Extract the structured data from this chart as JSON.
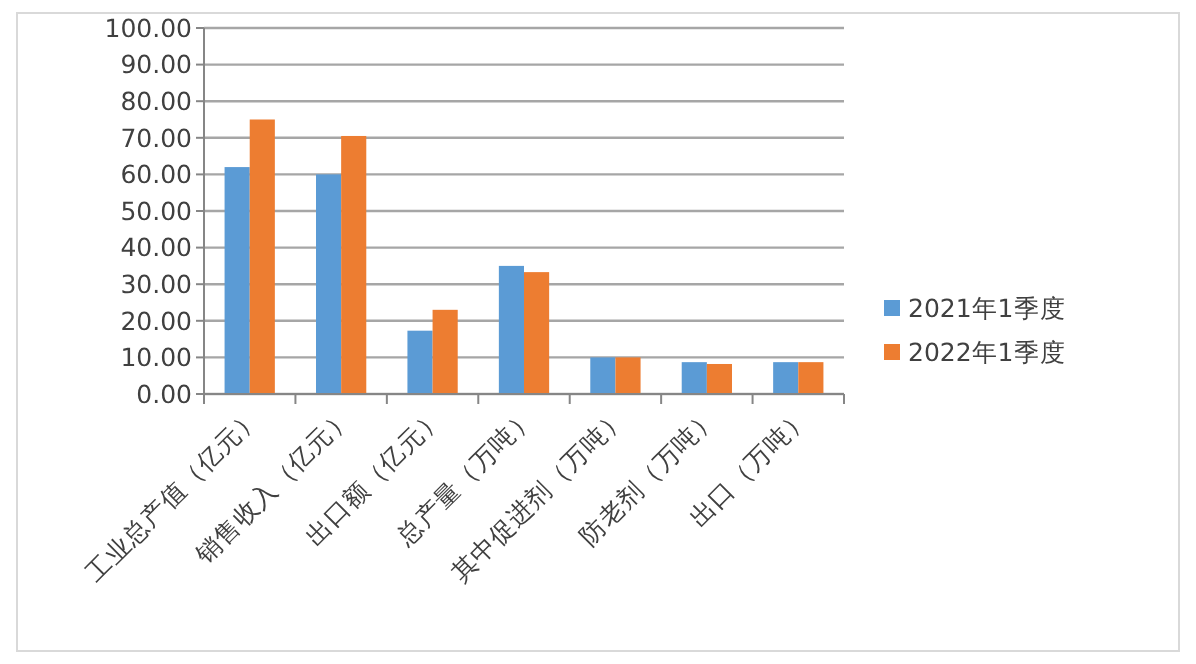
{
  "chart_data": {
    "type": "bar",
    "categories": [
      "工业总产值（亿元）",
      "销售收入（亿元）",
      "出口额（亿元）",
      "总产量（万吨）",
      "其中促进剂（万吨）",
      "防老剂（万吨）",
      "出口（万吨）"
    ],
    "series": [
      {
        "name": "2021年1季度",
        "color": "#5b9bd5",
        "values": [
          62,
          60,
          17.3,
          35,
          10,
          8.7,
          8.7
        ]
      },
      {
        "name": "2022年1季度",
        "color": "#ed7d31",
        "values": [
          75,
          70.5,
          23,
          33.3,
          10,
          8.2,
          8.7
        ]
      }
    ],
    "ylim": [
      0,
      100
    ],
    "yticks": [
      {
        "value": 0,
        "label": "0.00"
      },
      {
        "value": 10,
        "label": "10.00"
      },
      {
        "value": 20,
        "label": "20.00"
      },
      {
        "value": 30,
        "label": "30.00"
      },
      {
        "value": 40,
        "label": "40.00"
      },
      {
        "value": 50,
        "label": "50.00"
      },
      {
        "value": 60,
        "label": "60.00"
      },
      {
        "value": 70,
        "label": "70.00"
      },
      {
        "value": 80,
        "label": "80.00"
      },
      {
        "value": 90,
        "label": "90.00"
      },
      {
        "value": 100,
        "label": "100.00"
      }
    ],
    "grid": "y",
    "legend": "right"
  }
}
